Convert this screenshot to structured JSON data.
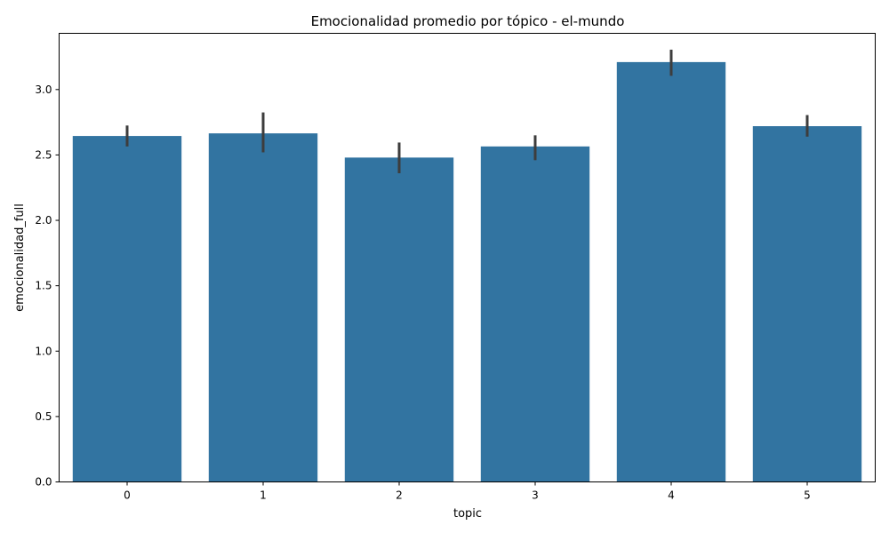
{
  "chart_data": {
    "type": "bar",
    "title": "Emocionalidad promedio por tópico - el-mundo",
    "xlabel": "topic",
    "ylabel": "emocionalidad_full",
    "categories": [
      "0",
      "1",
      "2",
      "3",
      "4",
      "5"
    ],
    "values": [
      2.645,
      2.665,
      2.48,
      2.565,
      3.21,
      2.72
    ],
    "error_bars": [
      [
        2.565,
        2.725
      ],
      [
        2.52,
        2.825
      ],
      [
        2.36,
        2.595
      ],
      [
        2.46,
        2.65
      ],
      [
        3.105,
        3.305
      ],
      [
        2.64,
        2.805
      ]
    ],
    "ylim": [
      0,
      3.43
    ],
    "yticks": [
      "0.0",
      "0.5",
      "1.0",
      "1.5",
      "2.0",
      "2.5",
      "3.0"
    ],
    "grid": false,
    "legend": "none",
    "bar_color": "#3274a1",
    "error_color": "#3d3d3d"
  }
}
